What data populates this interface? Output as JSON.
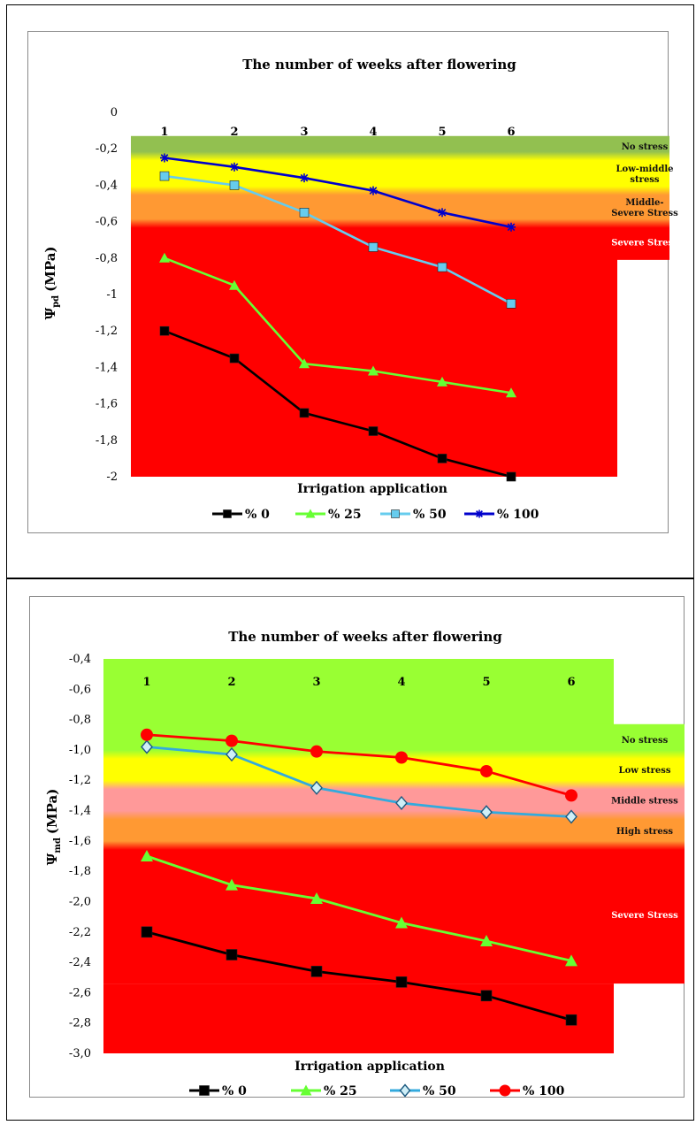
{
  "chart_data": [
    {
      "type": "line",
      "title": "The number of weeks after flowering",
      "xlabel": "Irrigation application",
      "ylabel_main": "Ψ",
      "ylabel_sub": "pd",
      "ylabel_unit": "(MPa)",
      "categories": [
        "1",
        "2",
        "3",
        "4",
        "5",
        "6"
      ],
      "ylim": [
        -2,
        0
      ],
      "yticks": [
        "0",
        "-0,2",
        "-0,4",
        "-0,6",
        "-0,8",
        "-1",
        "-1,2",
        "-1,4",
        "-1,6",
        "-1,8",
        "-2"
      ],
      "ytick_values": [
        0,
        -0.2,
        -0.4,
        -0.6,
        -0.8,
        -1,
        -1.2,
        -1.4,
        -1.6,
        -1.8,
        -2
      ],
      "zones": [
        {
          "label": "No stress",
          "from": -0.13,
          "to": -0.24,
          "color": "#92c050"
        },
        {
          "label": "Low-middle stress",
          "from": -0.24,
          "to": -0.43,
          "color": "#ffff00"
        },
        {
          "label": "Middle-Severe Stress",
          "from": -0.43,
          "to": -0.61,
          "color": "#ff9933"
        },
        {
          "label": "Severe Stress",
          "from": -0.61,
          "to": -2.0,
          "color": "#ff0000"
        }
      ],
      "series": [
        {
          "name": "% 0",
          "values": [
            -1.2,
            -1.35,
            -1.65,
            -1.75,
            -1.9,
            -2.0
          ],
          "color": "#000000",
          "marker": "square"
        },
        {
          "name": "% 25",
          "values": [
            -0.8,
            -0.95,
            -1.38,
            -1.42,
            -1.48,
            -1.54
          ],
          "color": "#66ff33",
          "marker": "triangle"
        },
        {
          "name": "% 50",
          "values": [
            -0.35,
            -0.4,
            -0.55,
            -0.74,
            -0.85,
            -1.05
          ],
          "color": "#66ccee",
          "marker": "square"
        },
        {
          "name": "% 100",
          "values": [
            -0.25,
            -0.3,
            -0.36,
            -0.43,
            -0.55,
            -0.63
          ],
          "color": "#0000cc",
          "marker": "star"
        }
      ]
    },
    {
      "type": "line",
      "title": "The number of weeks after flowering",
      "xlabel": "Irrigation application",
      "ylabel_main": "Ψ",
      "ylabel_sub": "md",
      "ylabel_unit": "(MPa)",
      "categories": [
        "1",
        "2",
        "3",
        "4",
        "5",
        "6"
      ],
      "ylim": [
        -3.0,
        -0.4
      ],
      "yticks": [
        "-0,4",
        "-0,6",
        "-0,8",
        "-1,0",
        "-1,2",
        "-1,4",
        "-1,6",
        "-1,8",
        "-2,0",
        "-2,2",
        "-2,4",
        "-2,6",
        "-2,8",
        "-3,0"
      ],
      "ytick_values": [
        -0.4,
        -0.6,
        -0.8,
        -1.0,
        -1.2,
        -1.4,
        -1.6,
        -1.8,
        -2.0,
        -2.2,
        -2.4,
        -2.6,
        -2.8,
        -3.0
      ],
      "zones": [
        {
          "label": "No stress",
          "from": -0.83,
          "to": -1.03,
          "color": "#99ff33"
        },
        {
          "label": "Low stress",
          "from": -1.03,
          "to": -1.23,
          "color": "#ffff00"
        },
        {
          "label": "Middle stress",
          "from": -1.23,
          "to": -1.43,
          "color": "#ff9999"
        },
        {
          "label": "High stress",
          "from": -1.43,
          "to": -1.63,
          "color": "#ff9933"
        },
        {
          "label": "Severe Stress",
          "from": -1.63,
          "to": -2.54,
          "color": "#ff0000"
        }
      ],
      "series": [
        {
          "name": "% 0",
          "values": [
            -2.2,
            -2.35,
            -2.46,
            -2.53,
            -2.62,
            -2.78
          ],
          "color": "#000000",
          "marker": "square"
        },
        {
          "name": "% 25",
          "values": [
            -1.7,
            -1.89,
            -1.98,
            -2.14,
            -2.26,
            -2.39
          ],
          "color": "#66ff33",
          "marker": "triangle"
        },
        {
          "name": "% 50",
          "values": [
            -0.98,
            -1.03,
            -1.25,
            -1.35,
            -1.41,
            -1.44
          ],
          "color": "#33aadd",
          "marker": "diamond"
        },
        {
          "name": "% 100",
          "values": [
            -0.9,
            -0.94,
            -1.01,
            -1.05,
            -1.14,
            -1.3
          ],
          "color": "#ff0000",
          "marker": "circle"
        }
      ]
    }
  ]
}
